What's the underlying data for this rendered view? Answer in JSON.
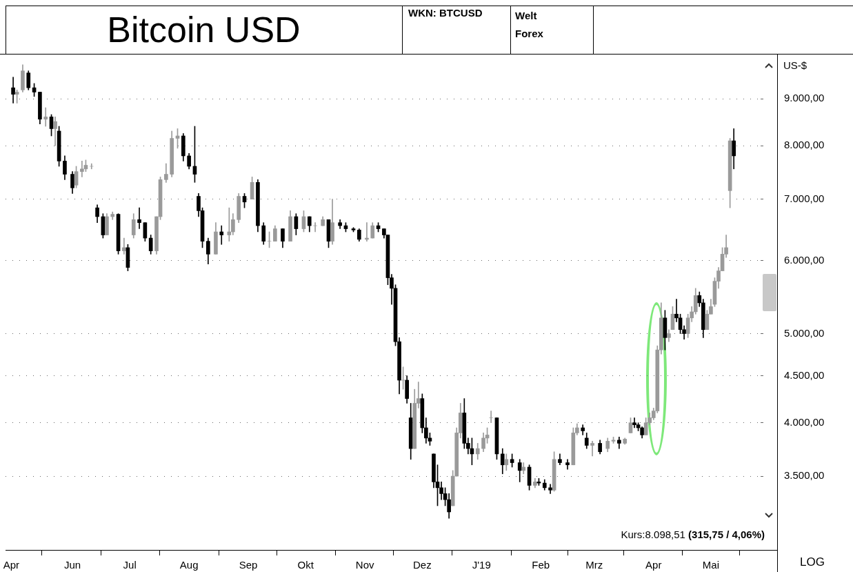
{
  "chart_data": {
    "type": "candlestick",
    "title": "Bitcoin USD",
    "ylabel": "US-$",
    "annotations": [
      "WKN: BTCUSD",
      "Welt Forex",
      "Kurs:8.098,51 (315,75 / 4,06%)",
      "LOG"
    ],
    "log": "y",
    "grid": "y",
    "xlim": [
      "2018-04-27",
      "2019-05-27"
    ],
    "ylim": [
      2910,
      10070
    ],
    "xticks": [
      {
        "value": "2018-04-30",
        "label": "Apr"
      },
      {
        "value": "2018-06-01",
        "label": "Jun"
      },
      {
        "value": "2018-07-01",
        "label": "Jul"
      },
      {
        "value": "2018-08-01",
        "label": "Aug"
      },
      {
        "value": "2018-09-01",
        "label": "Sep"
      },
      {
        "value": "2018-10-01",
        "label": "Okt"
      },
      {
        "value": "2018-11-01",
        "label": "Nov"
      },
      {
        "value": "2018-12-01",
        "label": "Dez"
      },
      {
        "value": "2019-01-01",
        "label": "J'19"
      },
      {
        "value": "2019-02-01",
        "label": "Feb"
      },
      {
        "value": "2019-03-01",
        "label": "Mrz"
      },
      {
        "value": "2019-04-01",
        "label": "Apr"
      },
      {
        "value": "2019-05-01",
        "label": "Mai"
      }
    ],
    "yticks": [
      {
        "value": 3500,
        "label": "3.500,00"
      },
      {
        "value": 4000,
        "label": "4.000,00"
      },
      {
        "value": 4500,
        "label": "4.500,00"
      },
      {
        "value": 5000,
        "label": "5.000,00"
      },
      {
        "value": 6000,
        "label": "6.000,00"
      },
      {
        "value": 7000,
        "label": "7.000,00"
      },
      {
        "value": 8000,
        "label": "8.000,00"
      },
      {
        "value": 9000,
        "label": "9.000,00"
      }
    ],
    "x": [
      "2018-05-01",
      "2018-05-03",
      "2018-05-06",
      "2018-05-09",
      "2018-05-12",
      "2018-05-15",
      "2018-05-18",
      "2018-05-21",
      "2018-05-23",
      "2018-05-25",
      "2018-05-28",
      "2018-06-01",
      "2018-06-03",
      "2018-06-06",
      "2018-06-08",
      "2018-06-11",
      "2018-06-14",
      "2018-06-17",
      "2018-06-19",
      "2018-06-22",
      "2018-06-25",
      "2018-06-28",
      "2018-06-30",
      "2018-07-03",
      "2018-07-06",
      "2018-07-09",
      "2018-07-12",
      "2018-07-15",
      "2018-07-17",
      "2018-07-20",
      "2018-07-23",
      "2018-07-26",
      "2018-07-29",
      "2018-08-01",
      "2018-08-04",
      "2018-08-06",
      "2018-08-08",
      "2018-08-11",
      "2018-08-15",
      "2018-08-18",
      "2018-08-22",
      "2018-08-24",
      "2018-08-27",
      "2018-08-30",
      "2018-09-03",
      "2018-09-06",
      "2018-09-09",
      "2018-09-12",
      "2018-09-15",
      "2018-09-19",
      "2018-09-23",
      "2018-09-26",
      "2018-09-30",
      "2018-10-03",
      "2018-10-06",
      "2018-10-10",
      "2018-10-13",
      "2018-10-15",
      "2018-10-19",
      "2018-10-22",
      "2018-10-26",
      "2018-10-29",
      "2018-11-02",
      "2018-11-05",
      "2018-11-08",
      "2018-11-11",
      "2018-11-13",
      "2018-11-15",
      "2018-11-17",
      "2018-11-19",
      "2018-11-21",
      "2018-11-23",
      "2018-11-25",
      "2018-11-27",
      "2018-11-29",
      "2018-12-01",
      "2018-12-03",
      "2018-12-05",
      "2018-12-07",
      "2018-12-09",
      "2018-12-11",
      "2018-12-13",
      "2018-12-15",
      "2018-12-17",
      "2018-12-19",
      "2018-12-21",
      "2018-12-23",
      "2018-12-25",
      "2018-12-27",
      "2018-12-30",
      "2019-01-02",
      "2019-01-04",
      "2019-01-06",
      "2019-01-09",
      "2019-01-12",
      "2019-01-14",
      "2019-01-17",
      "2019-01-21",
      "2019-01-23",
      "2019-01-26",
      "2019-01-29",
      "2019-01-31",
      "2019-02-03",
      "2019-02-06",
      "2019-02-08",
      "2019-02-11",
      "2019-02-15",
      "2019-02-18",
      "2019-02-20",
      "2019-02-23",
      "2019-02-25",
      "2019-02-28",
      "2019-03-04",
      "2019-03-08",
      "2019-03-11",
      "2019-03-14",
      "2019-03-17",
      "2019-03-20",
      "2019-03-22",
      "2019-03-24",
      "2019-03-26",
      "2019-03-28",
      "2019-03-30",
      "2019-04-01",
      "2019-04-03",
      "2019-04-05",
      "2019-04-07",
      "2019-04-09",
      "2019-04-11",
      "2019-04-13",
      "2019-04-15",
      "2019-04-17",
      "2019-04-19",
      "2019-04-21",
      "2019-04-23",
      "2019-04-25",
      "2019-04-27",
      "2019-04-29",
      "2019-05-01",
      "2019-05-03",
      "2019-05-05",
      "2019-05-07",
      "2019-05-09",
      "2019-05-11",
      "2019-05-13"
    ],
    "colors": [
      "#000000",
      "#9a9a9a",
      "#9a9a9a",
      "#000000",
      "#000000",
      "#000000",
      "#9a9a9a",
      "#000000",
      "#9a9a9a",
      "#000000",
      "#000000",
      "#000000",
      "#9a9a9a",
      "#9a9a9a",
      "#9a9a9a",
      "#9a9a9a",
      "#000000",
      "#000000",
      "#9a9a9a",
      "#9a9a9a",
      "#000000",
      "#9a9a9a",
      "#000000",
      "#9a9a9a",
      "#000000",
      "#000000",
      "#000000",
      "#9a9a9a",
      "#9a9a9a",
      "#9a9a9a",
      "#9a9a9a",
      "#9a9a9a",
      "#000000",
      "#000000",
      "#000000",
      "#000000",
      "#000000",
      "#000000",
      "#9a9a9a",
      "#000000",
      "#9a9a9a",
      "#9a9a9a",
      "#9a9a9a",
      "#000000",
      "#9a9a9a",
      "#000000",
      "#000000",
      "#9a9a9a",
      "#9a9a9a",
      "#000000",
      "#9a9a9a",
      "#000000",
      "#9a9a9a",
      "#000000",
      "#9a9a9a",
      "#9a9a9a",
      "#000000",
      "#9a9a9a",
      "#000000",
      "#000000",
      "#000000",
      "#000000",
      "#9a9a9a",
      "#9a9a9a",
      "#000000",
      "#000000",
      "#000000",
      "#000000",
      "#000000",
      "#000000",
      "#9a9a9a",
      "#000000",
      "#000000",
      "#9a9a9a",
      "#9a9a9a",
      "#000000",
      "#000000",
      "#000000",
      "#000000",
      "#000000",
      "#000000",
      "#000000",
      "#000000",
      "#9a9a9a",
      "#9a9a9a",
      "#9a9a9a",
      "#000000",
      "#000000",
      "#000000",
      "#9a9a9a",
      "#9a9a9a",
      "#9a9a9a",
      "#9a9a9a",
      "#000000",
      "#000000",
      "#9a9a9a",
      "#000000",
      "#000000",
      "#9a9a9a",
      "#000000",
      "#9a9a9a",
      "#000000",
      "#000000",
      "#000000",
      "#9a9a9a",
      "#000000",
      "#000000",
      "#9a9a9a",
      "#9a9a9a",
      "#000000",
      "#000000",
      "#9a9a9a",
      "#000000",
      "#9a9a9a",
      "#9a9a9a",
      "#000000",
      "#9a9a9a",
      "#9a9a9a",
      "#000000",
      "#000000",
      "#000000",
      "#9a9a9a",
      "#9a9a9a",
      "#9a9a9a",
      "#9a9a9a",
      "#9a9a9a",
      "#000000",
      "#9a9a9a",
      "#9a9a9a",
      "#000000",
      "#000000",
      "#000000",
      "#9a9a9a",
      "#9a9a9a",
      "#9a9a9a",
      "#000000",
      "#000000",
      "#9a9a9a",
      "#9a9a9a",
      "#9a9a9a",
      "#9a9a9a",
      "#9a9a9a",
      "#9a9a9a",
      "#9a9a9a",
      "#000000"
    ],
    "ohlc": [
      [
        9250,
        9500,
        8900,
        9100
      ],
      [
        9100,
        9200,
        8900,
        9150
      ],
      [
        9200,
        9800,
        9150,
        9650
      ],
      [
        9600,
        9650,
        9200,
        9250
      ],
      [
        9250,
        9350,
        9050,
        9150
      ],
      [
        9150,
        9150,
        8450,
        8550
      ],
      [
        8550,
        8800,
        8400,
        8600
      ],
      [
        8600,
        8650,
        8200,
        8350
      ],
      [
        8350,
        8600,
        8000,
        8500
      ],
      [
        8300,
        8400,
        7600,
        7700
      ],
      [
        7700,
        7800,
        7350,
        7450
      ],
      [
        7450,
        7500,
        7100,
        7200
      ],
      [
        7250,
        7600,
        7200,
        7500
      ],
      [
        7500,
        7700,
        7400,
        7550
      ],
      [
        7550,
        7720,
        7500,
        7620
      ],
      [
        7600,
        7650,
        7550,
        7600
      ],
      [
        6850,
        6900,
        6600,
        6700
      ],
      [
        6700,
        6750,
        6350,
        6400
      ],
      [
        6400,
        6750,
        6400,
        6700
      ],
      [
        6700,
        6780,
        6650,
        6740
      ],
      [
        6740,
        6750,
        6100,
        6150
      ],
      [
        6150,
        6350,
        6100,
        6200
      ],
      [
        6200,
        6250,
        5850,
        5900
      ],
      [
        6400,
        6750,
        6350,
        6650
      ],
      [
        6650,
        6850,
        6500,
        6600
      ],
      [
        6600,
        6600,
        6300,
        6350
      ],
      [
        6350,
        6400,
        6100,
        6150
      ],
      [
        6150,
        6700,
        6100,
        6700
      ],
      [
        6700,
        7400,
        6650,
        7350
      ],
      [
        7350,
        7650,
        7300,
        7450
      ],
      [
        7450,
        8300,
        7400,
        8150
      ],
      [
        8150,
        8350,
        7950,
        8200
      ],
      [
        8200,
        8250,
        7700,
        7800
      ],
      [
        7800,
        7850,
        7550,
        7600
      ],
      [
        7600,
        8400,
        7300,
        7450
      ],
      [
        7050,
        7100,
        6700,
        6800
      ],
      [
        6800,
        6850,
        6200,
        6300
      ],
      [
        6300,
        6350,
        5950,
        6100
      ],
      [
        6100,
        6600,
        6100,
        6450
      ],
      [
        6450,
        6550,
        6250,
        6400
      ],
      [
        6400,
        6850,
        6300,
        6450
      ],
      [
        6450,
        6750,
        6400,
        6650
      ],
      [
        6650,
        7100,
        6600,
        7050
      ],
      [
        7050,
        7100,
        6850,
        6950
      ],
      [
        7000,
        7400,
        7000,
        7300
      ],
      [
        7300,
        7350,
        6450,
        6550
      ],
      [
        6550,
        6600,
        6250,
        6300
      ],
      [
        6300,
        6450,
        6200,
        6300
      ],
      [
        6300,
        6550,
        6300,
        6500
      ],
      [
        6500,
        6500,
        6200,
        6300
      ],
      [
        6300,
        6800,
        6300,
        6700
      ],
      [
        6700,
        6750,
        6400,
        6500
      ],
      [
        6500,
        6800,
        6450,
        6700
      ],
      [
        6700,
        6700,
        6450,
        6550
      ],
      [
        6550,
        6600,
        6450,
        6550
      ],
      [
        6550,
        6700,
        6550,
        6650
      ],
      [
        6650,
        6650,
        6200,
        6300
      ],
      [
        6300,
        7000,
        6250,
        6600
      ],
      [
        6600,
        6650,
        6500,
        6550
      ],
      [
        6550,
        6600,
        6450,
        6500
      ],
      [
        6500,
        6520,
        6450,
        6480
      ],
      [
        6480,
        6500,
        6300,
        6330
      ],
      [
        6330,
        6600,
        6300,
        6350
      ],
      [
        6350,
        6600,
        6350,
        6550
      ],
      [
        6550,
        6600,
        6450,
        6500
      ],
      [
        6500,
        6500,
        6350,
        6400
      ],
      [
        6400,
        6400,
        5650,
        5750
      ],
      [
        5750,
        5800,
        5380,
        5600
      ],
      [
        5600,
        5650,
        4850,
        4900
      ],
      [
        4900,
        4950,
        4300,
        4450
      ],
      [
        4450,
        4600,
        4350,
        4450
      ],
      [
        4450,
        4500,
        4200,
        4250
      ],
      [
        4050,
        4200,
        3650,
        3750
      ],
      [
        3750,
        4350,
        3750,
        4200
      ],
      [
        4200,
        4430,
        4150,
        4250
      ],
      [
        4250,
        4300,
        3900,
        3950
      ],
      [
        3950,
        4050,
        3800,
        3850
      ],
      [
        3850,
        3900,
        3780,
        3820
      ],
      [
        3700,
        3700,
        3400,
        3450
      ],
      [
        3450,
        3600,
        3250,
        3400
      ],
      [
        3400,
        3450,
        3300,
        3350
      ],
      [
        3350,
        3400,
        3250,
        3300
      ],
      [
        3300,
        3350,
        3150,
        3200
      ],
      [
        3250,
        3550,
        3250,
        3500
      ],
      [
        3500,
        3950,
        3500,
        3900
      ],
      [
        3900,
        4200,
        3850,
        4100
      ],
      [
        4100,
        4250,
        3750,
        3800
      ],
      [
        3800,
        3850,
        3700,
        3750
      ],
      [
        3750,
        3850,
        3600,
        3700
      ],
      [
        3700,
        3800,
        3650,
        3750
      ],
      [
        3750,
        3900,
        3720,
        3850
      ],
      [
        3850,
        3950,
        3800,
        3880
      ],
      [
        4050,
        4120,
        4000,
        4050
      ],
      [
        4050,
        4050,
        3650,
        3700
      ],
      [
        3700,
        3750,
        3520,
        3600
      ],
      [
        3600,
        3700,
        3550,
        3650
      ],
      [
        3650,
        3700,
        3580,
        3620
      ],
      [
        3620,
        3650,
        3450,
        3550
      ],
      [
        3550,
        3620,
        3520,
        3580
      ],
      [
        3580,
        3600,
        3380,
        3420
      ],
      [
        3420,
        3480,
        3400,
        3450
      ],
      [
        3450,
        3480,
        3420,
        3440
      ],
      [
        3440,
        3470,
        3380,
        3400
      ],
      [
        3400,
        3430,
        3350,
        3380
      ],
      [
        3380,
        3720,
        3370,
        3650
      ],
      [
        3650,
        3700,
        3600,
        3620
      ],
      [
        3620,
        3650,
        3560,
        3600
      ],
      [
        3600,
        3950,
        3600,
        3900
      ],
      [
        3900,
        3990,
        3880,
        3950
      ],
      [
        3950,
        3980,
        3880,
        3920
      ],
      [
        3850,
        3900,
        3750,
        3780
      ],
      [
        3780,
        3820,
        3680,
        3800
      ],
      [
        3800,
        3830,
        3700,
        3720
      ],
      [
        3750,
        3850,
        3720,
        3820
      ],
      [
        3820,
        3860,
        3800,
        3830
      ],
      [
        3830,
        3860,
        3750,
        3800
      ],
      [
        3800,
        3850,
        3790,
        3840
      ],
      [
        3900,
        4050,
        3900,
        4000
      ],
      [
        4000,
        4050,
        3950,
        3980
      ],
      [
        3980,
        4000,
        3920,
        3950
      ],
      [
        3950,
        3960,
        3850,
        3880
      ],
      [
        3880,
        4050,
        3880,
        4000
      ],
      [
        4000,
        4100,
        3980,
        4050
      ],
      [
        4050,
        4150,
        4030,
        4120
      ],
      [
        4120,
        4850,
        4100,
        4800
      ],
      [
        4800,
        5400,
        4750,
        5200
      ],
      [
        5200,
        5300,
        4800,
        4950
      ],
      [
        4950,
        5050,
        4900,
        5000
      ],
      [
        5050,
        5350,
        5050,
        5250
      ],
      [
        5250,
        5450,
        5150,
        5200
      ],
      [
        5200,
        5250,
        5000,
        5050
      ],
      [
        5050,
        5100,
        4930,
        5000
      ],
      [
        5000,
        5250,
        4950,
        5200
      ],
      [
        5200,
        5350,
        5150,
        5280
      ],
      [
        5280,
        5600,
        5250,
        5500
      ],
      [
        5500,
        5550,
        5350,
        5400
      ],
      [
        5400,
        5450,
        4950,
        5050
      ],
      [
        5050,
        5300,
        5050,
        5250
      ],
      [
        5250,
        5450,
        5250,
        5350
      ],
      [
        5380,
        5750,
        5350,
        5700
      ],
      [
        5700,
        5900,
        5600,
        5850
      ],
      [
        5850,
        6200,
        5850,
        6100
      ],
      [
        6100,
        6400,
        6050,
        6200
      ],
      [
        7150,
        8150,
        6850,
        8100
      ],
      [
        8100,
        8350,
        7550,
        7800
      ]
    ]
  }
}
